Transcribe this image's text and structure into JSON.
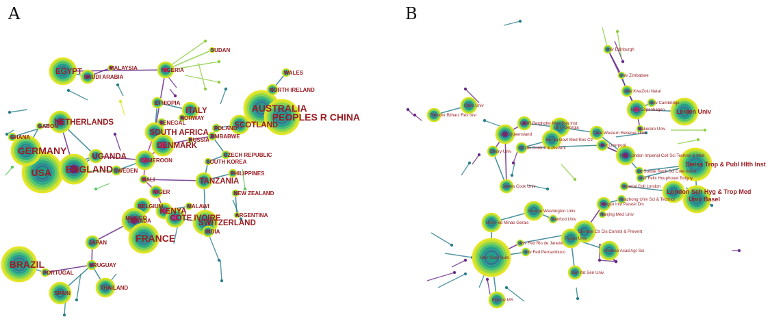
{
  "panels": {
    "a": {
      "letter": "A",
      "nodes": [
        {
          "id": "usa",
          "label": "USA",
          "big": true
        },
        {
          "id": "england",
          "label": "ENGLAND",
          "big": true
        },
        {
          "id": "germany",
          "label": "GERMANY",
          "big": true
        },
        {
          "id": "netherlands",
          "label": "NETHERLANDS",
          "big": true
        },
        {
          "id": "ghana",
          "label": "GHANA"
        },
        {
          "id": "gabon",
          "label": "GABON"
        },
        {
          "id": "uganda",
          "label": "UGANDA",
          "big": true
        },
        {
          "id": "sweden",
          "label": "SWEDEN"
        },
        {
          "id": "cameroon",
          "label": "CAMEROON"
        },
        {
          "id": "mali",
          "label": "MALI"
        },
        {
          "id": "niger",
          "label": "NIGER"
        },
        {
          "id": "belgium",
          "label": "BELGIUM"
        },
        {
          "id": "mexico",
          "label": "MEXICO"
        },
        {
          "id": "canada",
          "label": "CANADA"
        },
        {
          "id": "kenya",
          "label": "KENYA",
          "big": true
        },
        {
          "id": "cote_ivoire",
          "label": "COTE IVOIRE",
          "big": true
        },
        {
          "id": "malawi",
          "label": "MALAWI"
        },
        {
          "id": "switzerland",
          "label": "SWITZERLAND",
          "big": true
        },
        {
          "id": "france",
          "label": "FRANCE",
          "big": true
        },
        {
          "id": "india",
          "label": "INDIA"
        },
        {
          "id": "japan",
          "label": "JAPAN"
        },
        {
          "id": "brazil",
          "label": "BRAZIL",
          "big": true
        },
        {
          "id": "portugal",
          "label": "PORTUGAL"
        },
        {
          "id": "uruguay",
          "label": "URUGUAY"
        },
        {
          "id": "spain",
          "label": "SPAIN"
        },
        {
          "id": "thailand",
          "label": "THAILAND"
        },
        {
          "id": "egypt",
          "label": "EGYPT",
          "big": true
        },
        {
          "id": "saudi_arabia",
          "label": "SAUDI ARABIA"
        },
        {
          "id": "malaysia",
          "label": "MALAYSIA"
        },
        {
          "id": "nigeria",
          "label": "NIGERIA"
        },
        {
          "id": "sudan",
          "label": "SUDAN"
        },
        {
          "id": "ethiopia",
          "label": "ETHIOPIA"
        },
        {
          "id": "italy",
          "label": "ITALY",
          "big": true
        },
        {
          "id": "norway",
          "label": "NORWAY"
        },
        {
          "id": "senegal",
          "label": "SENEGAL"
        },
        {
          "id": "south_africa",
          "label": "SOUTH AFRICA",
          "big": true
        },
        {
          "id": "denmark",
          "label": "DENMARK",
          "big": true
        },
        {
          "id": "russia",
          "label": "RUSSIA"
        },
        {
          "id": "poland",
          "label": "POLAND"
        },
        {
          "id": "zimbabwe",
          "label": "ZIMBABWE"
        },
        {
          "id": "scotland",
          "label": "SCOTLAND",
          "big": true
        },
        {
          "id": "australia",
          "label": "AUSTRALIA",
          "big": true
        },
        {
          "id": "peoples_r_china",
          "label": "PEOPLES R CHINA",
          "big": true
        },
        {
          "id": "north_ireland",
          "label": "NORTH IRELAND"
        },
        {
          "id": "wales",
          "label": "WALES"
        },
        {
          "id": "czech_republic",
          "label": "CZECH REPUBLIC"
        },
        {
          "id": "south_korea",
          "label": "SOUTH KOREA"
        },
        {
          "id": "philippines",
          "label": "PHILIPPINES"
        },
        {
          "id": "tanzania",
          "label": "TANZANIA",
          "big": true
        },
        {
          "id": "new_zealand",
          "label": "NEW ZEALAND"
        },
        {
          "id": "argentina",
          "label": "ARGENTINA"
        }
      ]
    },
    "b": {
      "letter": "B",
      "nodes": [
        {
          "id": "univ_edinburgh",
          "label": "Univ Edinburgh"
        },
        {
          "id": "univ_zimbabwe",
          "label": "Univ Zimbabwe"
        },
        {
          "id": "univ_kwazulu_natal",
          "label": "Univ KwaZulu Natal"
        },
        {
          "id": "univ_cambridge",
          "label": "Univ Cambridge"
        },
        {
          "id": "univ_copenhagen",
          "label": "Univ Copenhagen"
        },
        {
          "id": "leiden_univ",
          "label": "Leiden Univ",
          "big": true
        },
        {
          "id": "makerere_univ",
          "label": "Makerere Univ"
        },
        {
          "id": "cairo_univ",
          "label": "Cairo Univ"
        },
        {
          "id": "theodor_bilharz",
          "label": "Theodor Bilharz Res Inst"
        },
        {
          "id": "qimr_berghofer",
          "label": "QIMR Berghofer Med Res Inst"
        },
        {
          "id": "univ_georgia",
          "label": "Univ Georgia"
        },
        {
          "id": "case_western",
          "label": "Case Western Reserve Univ"
        },
        {
          "id": "univ_queensland",
          "label": "Univ Queensland"
        },
        {
          "id": "kenya_govt",
          "label": "Kenya Govt Med Res Ctr"
        },
        {
          "id": "emory_univ",
          "label": "Emory Univ"
        },
        {
          "id": "ctr_dis_control",
          "label": "Ctr Dis Control & Prevent"
        },
        {
          "id": "univ_liverpool",
          "label": "Univ Liverpool"
        },
        {
          "id": "univ_london_imperial",
          "label": "Univ London Imperial Coll Sci Technol & Med"
        },
        {
          "id": "ctr_suisse",
          "label": "Ctr Suisse Rech Sci Cote Ivoire"
        },
        {
          "id": "swiss_trop",
          "label": "Swiss Trop & Publ Hlth Inst",
          "big": true
        },
        {
          "id": "univ_felix",
          "label": "Univ Felix Houphouet Boigny"
        },
        {
          "id": "imperial_coll",
          "label": "Imperial Coll London"
        },
        {
          "id": "london_sch",
          "label": "London Sch Hyg & Trop Med",
          "big": true
        },
        {
          "id": "huazhong",
          "label": "Huazhong Univ Sci & Technol"
        },
        {
          "id": "univ_basel",
          "label": "Univ Basel",
          "big": true
        },
        {
          "id": "james_cook",
          "label": "James Cook Univ"
        },
        {
          "id": "jiangsu",
          "label": "Jiangsu Inst Parasit Dis"
        },
        {
          "id": "nanjing_med",
          "label": "Nanjing Med Univ"
        },
        {
          "id": "george_washington",
          "label": "George Washington Univ"
        },
        {
          "id": "stanford",
          "label": "Stanford Univ"
        },
        {
          "id": "univ_fed_minas",
          "label": "Univ Fed Minas Gerais"
        },
        {
          "id": "chinese_ctr_dis",
          "label": "Chinese Ctr Dis Control & Prevent"
        },
        {
          "id": "fudan",
          "label": "Fudan Univ"
        },
        {
          "id": "univ_fed_rio",
          "label": "Univ Fed Rio de Janeiro"
        },
        {
          "id": "univ_fed_pernambuco",
          "label": "Univ Fed Pernambuco"
        },
        {
          "id": "univ_sao_paulo",
          "label": "Univ Sao Paulo"
        },
        {
          "id": "chinese_acad_agr",
          "label": "Chinese Acad Agr Sci"
        },
        {
          "id": "sun_yat_sen",
          "label": "Sun Yat Sen Univ"
        },
        {
          "id": "fiocruz",
          "label": "Fiocruz MS"
        }
      ]
    }
  }
}
